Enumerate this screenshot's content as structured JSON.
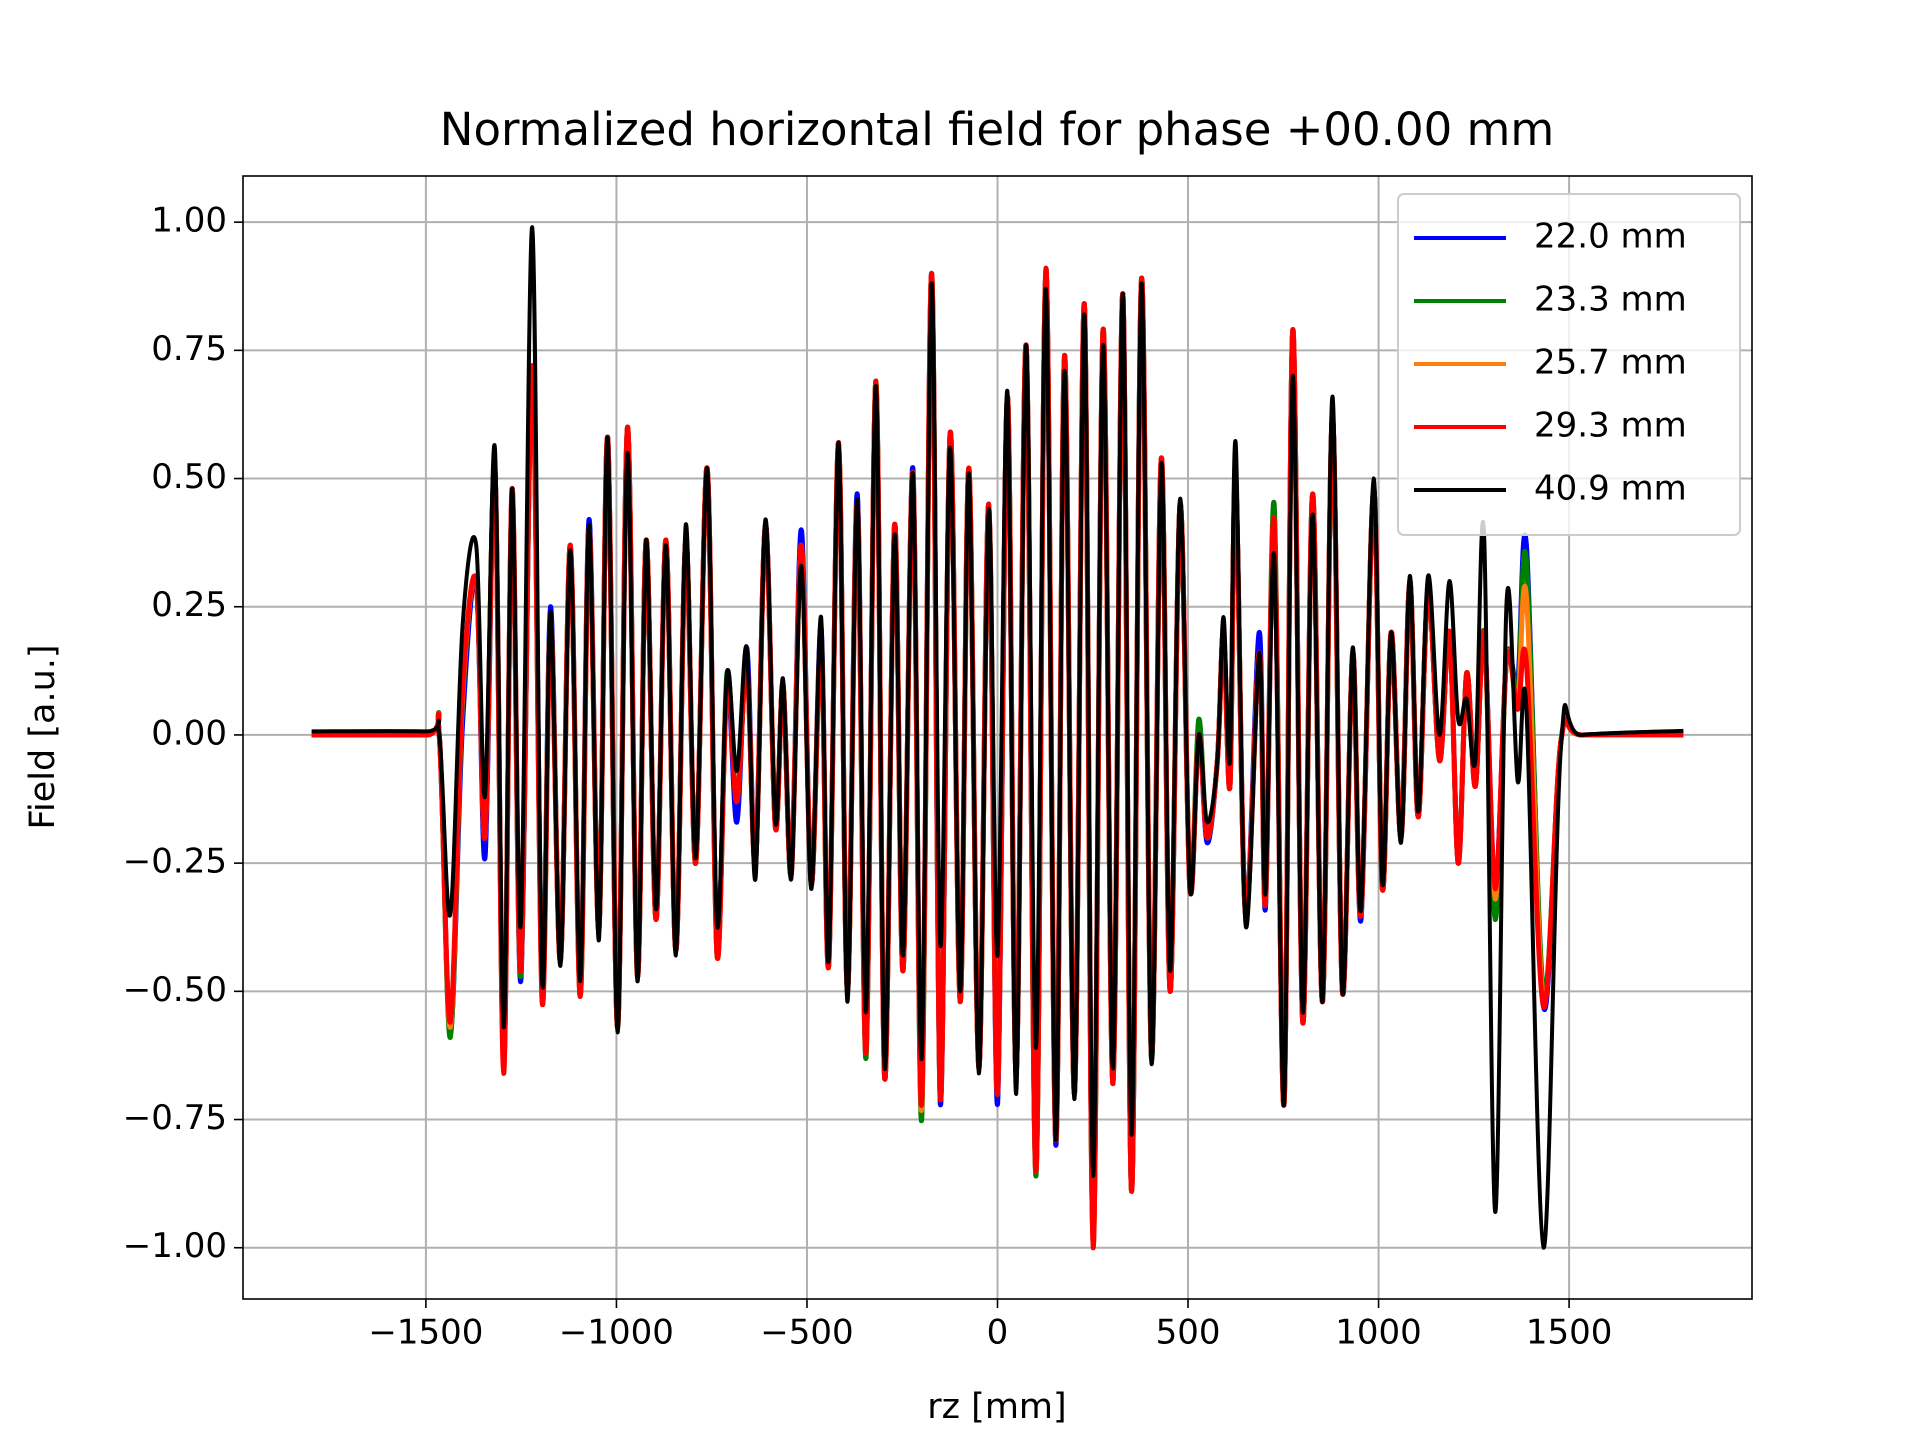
{
  "chart_data": {
    "type": "line",
    "title": "Normalized horizontal field for phase +00.00 mm",
    "xlabel": "rz [mm]",
    "ylabel": "Field [a.u.]",
    "xlim": [
      -1980,
      1980
    ],
    "ylim": [
      -1.1,
      1.09
    ],
    "xticks": [
      {
        "value": -1500,
        "label": "−1500"
      },
      {
        "value": -1000,
        "label": "−1000"
      },
      {
        "value": -500,
        "label": "−500"
      },
      0,
      500,
      1000,
      1500
    ],
    "yticks": [
      {
        "value": 1,
        "label": "1.00"
      },
      {
        "value": 0.75,
        "label": "0.75"
      },
      {
        "value": 0.5,
        "label": "0.50"
      },
      {
        "value": 0.25,
        "label": "0.25"
      },
      {
        "value": 0,
        "label": "0.00"
      },
      {
        "value": -0.25,
        "label": "−0.25"
      },
      {
        "value": -0.5,
        "label": "−0.50"
      },
      {
        "value": -0.75,
        "label": "−0.75"
      },
      {
        "value": -1,
        "label": "−1.00"
      }
    ],
    "grid": true,
    "legend": "upper right",
    "x": [
      -1800,
      -1500,
      -1465,
      -1436,
      -1404,
      -1368,
      -1345,
      -1319,
      -1296,
      -1274,
      -1251,
      -1221,
      -1195,
      -1173,
      -1147,
      -1121,
      -1095,
      -1072,
      -1046,
      -1023,
      -997,
      -971,
      -945,
      -922,
      -896,
      -870,
      -844,
      -818,
      -792,
      -762,
      -736,
      -710,
      -684,
      -658,
      -635,
      -609,
      -583,
      -563,
      -541,
      -515,
      -489,
      -463,
      -443,
      -417,
      -394,
      -368,
      -345,
      -319,
      -296,
      -270,
      -248,
      -222,
      -199,
      -173,
      -150,
      -124,
      -98,
      -75,
      -49,
      -23,
      0,
      26,
      49,
      75,
      101,
      127,
      153,
      176,
      202,
      228,
      251,
      277,
      303,
      329,
      352,
      378,
      404,
      430,
      453,
      479,
      505,
      528,
      550,
      577,
      593,
      610,
      625,
      651,
      687,
      703,
      726,
      752,
      775,
      801,
      827,
      853,
      879,
      905,
      932,
      954,
      987,
      1010,
      1033,
      1059,
      1082,
      1104,
      1130,
      1160,
      1186,
      1209,
      1231,
      1254,
      1277,
      1306,
      1336,
      1365,
      1388,
      1433,
      1479,
      1534,
      1800
    ],
    "series": [
      {
        "name": "22.0 mm",
        "color": "#0000ff",
        "values": [
          0,
          0,
          0,
          -0.58,
          0.02,
          0.3,
          -0.24,
          0.52,
          -0.64,
          0.47,
          -0.48,
          0.72,
          -0.5,
          0.25,
          -0.44,
          0.37,
          -0.5,
          0.42,
          -0.38,
          0.58,
          -0.57,
          0.6,
          -0.47,
          0.38,
          -0.36,
          0.38,
          -0.42,
          0.38,
          -0.25,
          0.52,
          -0.42,
          0.1,
          -0.17,
          0.17,
          -0.25,
          0.41,
          -0.18,
          0.1,
          -0.27,
          0.4,
          -0.29,
          0.21,
          -0.45,
          0.57,
          -0.5,
          0.47,
          -0.62,
          0.69,
          -0.67,
          0.41,
          -0.46,
          0.52,
          -0.72,
          0.9,
          -0.72,
          0.59,
          -0.52,
          0.52,
          -0.65,
          0.45,
          -0.72,
          0.66,
          -0.66,
          0.76,
          -0.85,
          0.91,
          -0.8,
          0.74,
          -0.7,
          0.84,
          -0.98,
          0.79,
          -0.68,
          0.86,
          -0.89,
          0.89,
          -0.63,
          0.54,
          -0.5,
          0.45,
          -0.3,
          0.0,
          -0.21,
          -0.05,
          0.2,
          -0.1,
          0.5,
          -0.35,
          0.2,
          -0.34,
          0.42,
          -0.72,
          0.79,
          -0.56,
          0.47,
          -0.52,
          0.62,
          -0.5,
          0.16,
          -0.36,
          0.48,
          -0.3,
          0.2,
          -0.2,
          0.3,
          -0.16,
          0.28,
          -0.05,
          0.2,
          -0.25,
          0.12,
          -0.1,
          0.2,
          -0.3,
          0.15,
          0.1,
          0.37,
          -0.53,
          -0.01,
          0,
          0
        ]
      },
      {
        "name": "23.3 mm",
        "color": "#008000",
        "values": [
          0,
          0,
          0,
          -0.59,
          0.06,
          0.3,
          -0.2,
          0.52,
          -0.64,
          0.47,
          -0.47,
          0.72,
          -0.5,
          0.23,
          -0.44,
          0.37,
          -0.51,
          0.4,
          -0.38,
          0.58,
          -0.57,
          0.6,
          -0.47,
          0.38,
          -0.36,
          0.38,
          -0.42,
          0.38,
          -0.25,
          0.52,
          -0.43,
          0.12,
          -0.13,
          0.14,
          -0.25,
          0.41,
          -0.18,
          0.1,
          -0.27,
          0.37,
          -0.29,
          0.19,
          -0.45,
          0.57,
          -0.5,
          0.45,
          -0.63,
          0.69,
          -0.67,
          0.41,
          -0.46,
          0.51,
          -0.75,
          0.9,
          -0.71,
          0.59,
          -0.52,
          0.52,
          -0.65,
          0.45,
          -0.7,
          0.66,
          -0.66,
          0.76,
          -0.86,
          0.91,
          -0.79,
          0.74,
          -0.7,
          0.84,
          -1.0,
          0.79,
          -0.68,
          0.86,
          -0.89,
          0.89,
          -0.63,
          0.54,
          -0.5,
          0.45,
          -0.3,
          0.03,
          -0.2,
          -0.05,
          0.2,
          -0.1,
          0.5,
          -0.35,
          0.16,
          -0.33,
          0.45,
          -0.72,
          0.79,
          -0.56,
          0.47,
          -0.52,
          0.62,
          -0.5,
          0.16,
          -0.35,
          0.48,
          -0.3,
          0.2,
          -0.2,
          0.3,
          -0.16,
          0.28,
          -0.05,
          0.2,
          -0.25,
          0.12,
          -0.1,
          0.2,
          -0.36,
          0.15,
          0.08,
          0.34,
          -0.5,
          -0.01,
          0,
          0
        ]
      },
      {
        "name": "25.7 mm",
        "color": "#ff7f0e",
        "values": [
          0,
          0,
          0,
          -0.57,
          0.07,
          0.3,
          -0.2,
          0.52,
          -0.65,
          0.48,
          -0.46,
          0.72,
          -0.52,
          0.22,
          -0.44,
          0.37,
          -0.51,
          0.4,
          -0.38,
          0.58,
          -0.57,
          0.6,
          -0.47,
          0.38,
          -0.36,
          0.38,
          -0.42,
          0.38,
          -0.25,
          0.52,
          -0.43,
          0.1,
          -0.13,
          0.14,
          -0.25,
          0.41,
          -0.18,
          0.1,
          -0.27,
          0.37,
          -0.29,
          0.19,
          -0.45,
          0.57,
          -0.5,
          0.45,
          -0.62,
          0.69,
          -0.67,
          0.41,
          -0.46,
          0.51,
          -0.73,
          0.9,
          -0.71,
          0.59,
          -0.52,
          0.52,
          -0.65,
          0.45,
          -0.7,
          0.66,
          -0.66,
          0.76,
          -0.85,
          0.91,
          -0.79,
          0.74,
          -0.7,
          0.84,
          -1.0,
          0.79,
          -0.68,
          0.86,
          -0.89,
          0.89,
          -0.62,
          0.54,
          -0.5,
          0.45,
          -0.3,
          0.0,
          -0.2,
          -0.05,
          0.2,
          -0.1,
          0.5,
          -0.35,
          0.16,
          -0.33,
          0.42,
          -0.72,
          0.79,
          -0.56,
          0.47,
          -0.52,
          0.62,
          -0.5,
          0.16,
          -0.35,
          0.48,
          -0.3,
          0.2,
          -0.2,
          0.3,
          -0.16,
          0.28,
          -0.05,
          0.2,
          -0.25,
          0.12,
          -0.1,
          0.2,
          -0.32,
          0.15,
          0.06,
          0.27,
          -0.52,
          -0.01,
          0,
          0
        ]
      },
      {
        "name": "29.3 mm",
        "color": "#ff0000",
        "values": [
          0,
          0,
          0,
          -0.56,
          0.08,
          0.3,
          -0.2,
          0.52,
          -0.66,
          0.48,
          -0.46,
          0.72,
          -0.52,
          0.22,
          -0.44,
          0.37,
          -0.51,
          0.4,
          -0.38,
          0.58,
          -0.57,
          0.6,
          -0.47,
          0.38,
          -0.36,
          0.38,
          -0.42,
          0.38,
          -0.25,
          0.52,
          -0.43,
          0.1,
          -0.13,
          0.14,
          -0.25,
          0.41,
          -0.18,
          0.1,
          -0.27,
          0.37,
          -0.29,
          0.19,
          -0.45,
          0.57,
          -0.5,
          0.45,
          -0.62,
          0.69,
          -0.67,
          0.41,
          -0.46,
          0.51,
          -0.72,
          0.9,
          -0.71,
          0.59,
          -0.52,
          0.52,
          -0.65,
          0.45,
          -0.7,
          0.66,
          -0.66,
          0.76,
          -0.85,
          0.91,
          -0.79,
          0.74,
          -0.7,
          0.84,
          -1.0,
          0.79,
          -0.68,
          0.86,
          -0.89,
          0.89,
          -0.62,
          0.54,
          -0.5,
          0.45,
          -0.3,
          0.0,
          -0.2,
          -0.05,
          0.2,
          -0.1,
          0.5,
          -0.35,
          0.16,
          -0.33,
          0.42,
          -0.72,
          0.79,
          -0.56,
          0.47,
          -0.52,
          0.62,
          -0.5,
          0.16,
          -0.35,
          0.48,
          -0.3,
          0.2,
          -0.2,
          0.3,
          -0.16,
          0.28,
          -0.05,
          0.2,
          -0.25,
          0.12,
          -0.1,
          0.2,
          -0.3,
          0.15,
          0.05,
          0.14,
          -0.53,
          -0.01,
          0,
          0
        ]
      },
      {
        "name": "40.9 mm",
        "color": "#000000",
        "values": [
          0.007,
          0.007,
          0,
          -0.35,
          0.21,
          0.37,
          -0.12,
          0.56,
          -0.57,
          0.48,
          -0.37,
          0.99,
          -0.48,
          0.24,
          -0.45,
          0.36,
          -0.48,
          0.41,
          -0.4,
          0.58,
          -0.58,
          0.55,
          -0.48,
          0.38,
          -0.34,
          0.37,
          -0.43,
          0.41,
          -0.24,
          0.52,
          -0.37,
          0.12,
          -0.07,
          0.17,
          -0.28,
          0.42,
          -0.17,
          0.11,
          -0.28,
          0.33,
          -0.3,
          0.23,
          -0.44,
          0.57,
          -0.52,
          0.46,
          -0.54,
          0.68,
          -0.65,
          0.39,
          -0.43,
          0.51,
          -0.63,
          0.88,
          -0.41,
          0.56,
          -0.5,
          0.51,
          -0.66,
          0.44,
          -0.43,
          0.67,
          -0.7,
          0.76,
          -0.61,
          0.87,
          -0.79,
          0.71,
          -0.71,
          0.82,
          -0.86,
          0.76,
          -0.65,
          0.86,
          -0.78,
          0.88,
          -0.64,
          0.53,
          -0.46,
          0.46,
          -0.3,
          0.0,
          -0.17,
          -0.05,
          0.23,
          -0.05,
          0.57,
          -0.37,
          0.16,
          -0.31,
          0.35,
          -0.72,
          0.7,
          -0.54,
          0.43,
          -0.52,
          0.66,
          -0.5,
          0.17,
          -0.34,
          0.5,
          -0.29,
          0.2,
          -0.21,
          0.31,
          -0.15,
          0.31,
          0.0,
          0.3,
          0.03,
          0.07,
          -0.05,
          0.39,
          -0.93,
          0.26,
          -0.09,
          0.05,
          -1.0,
          -0.02,
          0.0,
          0.008
        ]
      }
    ]
  }
}
